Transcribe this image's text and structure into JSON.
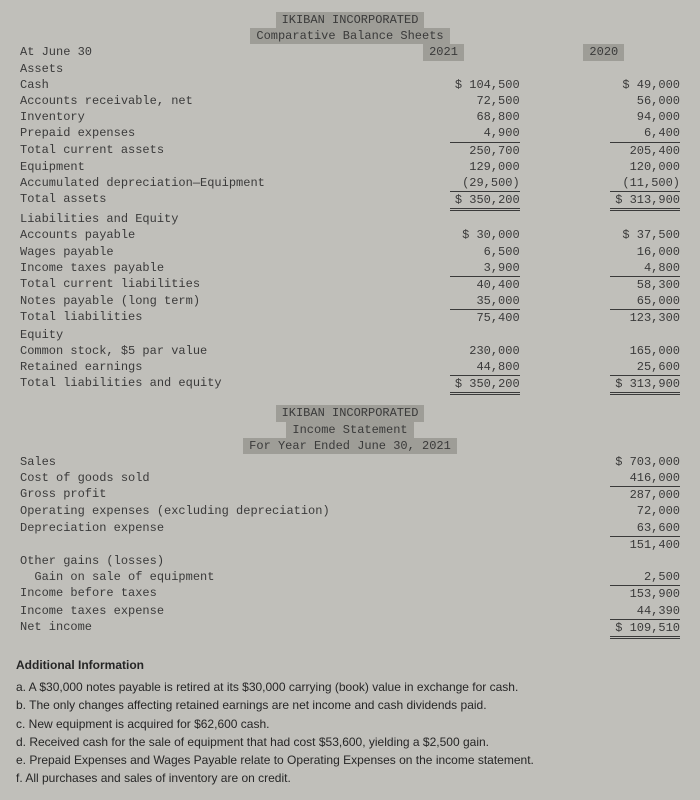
{
  "balance_sheet": {
    "company": "IKIBAN INCORPORATED",
    "title": "Comparative Balance Sheets",
    "date_label": "At June 30",
    "col_headers": [
      "2021",
      "2020"
    ],
    "sections": {
      "assets_header": "Assets",
      "assets": [
        {
          "label": "Cash",
          "y21": "$ 104,500",
          "y20": "$ 49,000"
        },
        {
          "label": "Accounts receivable, net",
          "y21": "72,500",
          "y20": "56,000"
        },
        {
          "label": "Inventory",
          "y21": "68,800",
          "y20": "94,000"
        },
        {
          "label": "Prepaid expenses",
          "y21": "4,900",
          "y20": "6,400"
        },
        {
          "label": "Total current assets",
          "y21": "250,700",
          "y20": "205,400",
          "top_rule": true
        },
        {
          "label": "Equipment",
          "y21": "129,000",
          "y20": "120,000"
        },
        {
          "label": "Accumulated depreciation—Equipment",
          "y21": "(29,500)",
          "y20": "(11,500)"
        },
        {
          "label": "Total assets",
          "y21": "$ 350,200",
          "y20": "$ 313,900",
          "top_rule": true,
          "dbl": true
        }
      ],
      "liab_header": "Liabilities and Equity",
      "liab": [
        {
          "label": "Accounts payable",
          "y21": "$ 30,000",
          "y20": "$ 37,500"
        },
        {
          "label": "Wages payable",
          "y21": "6,500",
          "y20": "16,000"
        },
        {
          "label": "Income taxes payable",
          "y21": "3,900",
          "y20": "4,800"
        },
        {
          "label": "Total current liabilities",
          "y21": "40,400",
          "y20": "58,300",
          "top_rule": true
        },
        {
          "label": "Notes payable (long term)",
          "y21": "35,000",
          "y20": "65,000"
        },
        {
          "label": "Total liabilities",
          "y21": "75,400",
          "y20": "123,300",
          "top_rule": true
        }
      ],
      "equity_header": "Equity",
      "equity": [
        {
          "label": "Common stock, $5 par value",
          "y21": "230,000",
          "y20": "165,000"
        },
        {
          "label": "Retained earnings",
          "y21": "44,800",
          "y20": "25,600"
        },
        {
          "label": "Total liabilities and equity",
          "y21": "$ 350,200",
          "y20": "$ 313,900",
          "top_rule": true,
          "dbl": true
        }
      ]
    }
  },
  "income_statement": {
    "company": "IKIBAN INCORPORATED",
    "title": "Income Statement",
    "period": "For Year Ended June 30, 2021",
    "rows": [
      {
        "label": "Sales",
        "val": "$ 703,000"
      },
      {
        "label": "Cost of goods sold",
        "val": "416,000"
      },
      {
        "label": "Gross profit",
        "val": "287,000",
        "top_rule": true
      },
      {
        "label": "Operating expenses (excluding depreciation)",
        "val": "72,000"
      },
      {
        "label": "Depreciation expense",
        "val": "63,600"
      },
      {
        "label": "",
        "val": "151,400",
        "top_rule": true
      },
      {
        "label": "Other gains (losses)",
        "val": ""
      },
      {
        "label": "  Gain on sale of equipment",
        "val": "2,500"
      },
      {
        "label": "Income before taxes",
        "val": "153,900",
        "top_rule": true
      },
      {
        "label": "Income taxes expense",
        "val": "44,390"
      },
      {
        "label": "Net income",
        "val": "$ 109,510",
        "top_rule": true,
        "dbl": true
      }
    ]
  },
  "additional_info": {
    "header": "Additional Information",
    "items": [
      "a. A $30,000 notes payable is retired at its $30,000 carrying (book) value in exchange for cash.",
      "b. The only changes affecting retained earnings are net income and cash dividends paid.",
      "c. New equipment is acquired for $62,600 cash.",
      "d. Received cash for the sale of equipment that had cost $53,600, yielding a $2,500 gain.",
      "e. Prepaid Expenses and Wages Payable relate to Operating Expenses on the income statement.",
      "f. All purchases and sales of inventory are on credit."
    ]
  }
}
